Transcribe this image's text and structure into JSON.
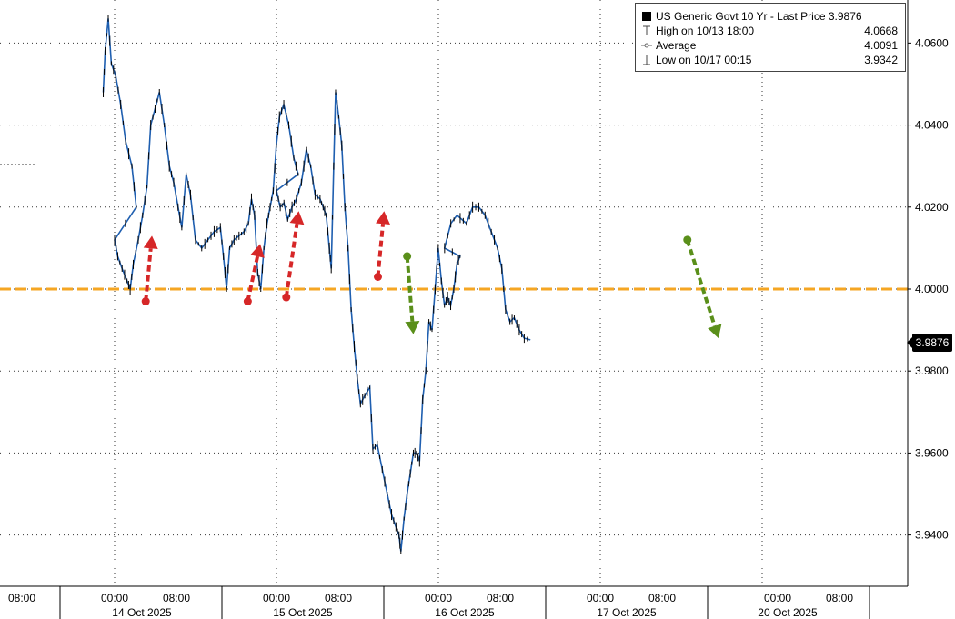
{
  "chart_data": {
    "type": "line",
    "series": [
      {
        "name": "US Generic Govt 10 Yr - Last Price",
        "values": [
          [
            -0.58,
            4.048
          ],
          [
            -0.55,
            4.058
          ],
          [
            -0.5,
            4.066
          ],
          [
            -0.45,
            4.055
          ],
          [
            -0.38,
            4.052
          ],
          [
            -0.3,
            4.045
          ],
          [
            -0.22,
            4.036
          ],
          [
            -0.12,
            4.03
          ],
          [
            -0.05,
            4.02
          ],
          [
            0.0,
            4.012
          ],
          [
            0.05,
            4.008
          ],
          [
            0.12,
            4.005
          ],
          [
            0.2,
            4.002
          ],
          [
            0.25,
            4.0
          ],
          [
            0.3,
            4.006
          ],
          [
            0.38,
            4.012
          ],
          [
            0.45,
            4.018
          ],
          [
            0.52,
            4.025
          ],
          [
            0.58,
            4.04
          ],
          [
            0.65,
            4.044
          ],
          [
            0.72,
            4.048
          ],
          [
            0.8,
            4.04
          ],
          [
            0.88,
            4.03
          ],
          [
            0.95,
            4.026
          ],
          [
            1.02,
            4.02
          ],
          [
            1.08,
            4.015
          ],
          [
            1.15,
            4.028
          ],
          [
            1.22,
            4.023
          ],
          [
            1.3,
            4.012
          ],
          [
            1.4,
            4.01
          ],
          [
            1.5,
            4.012
          ],
          [
            1.6,
            4.014
          ],
          [
            1.7,
            4.015
          ],
          [
            1.75,
            4.008
          ],
          [
            1.8,
            4.0
          ],
          [
            1.85,
            4.01
          ],
          [
            1.92,
            4.012
          ],
          [
            2.0,
            4.013
          ],
          [
            2.08,
            4.014
          ],
          [
            2.15,
            4.016
          ],
          [
            2.2,
            4.022
          ],
          [
            2.25,
            4.018
          ],
          [
            2.3,
            4.004
          ],
          [
            2.35,
            4.0
          ],
          [
            2.4,
            4.01
          ],
          [
            2.45,
            4.016
          ],
          [
            2.5,
            4.02
          ],
          [
            2.55,
            4.024
          ],
          [
            2.6,
            4.035
          ],
          [
            2.65,
            4.042
          ],
          [
            2.72,
            4.045
          ],
          [
            2.8,
            4.04
          ],
          [
            2.88,
            4.032
          ],
          [
            2.95,
            4.028
          ],
          [
            3.0,
            4.024
          ],
          [
            3.06,
            4.02
          ],
          [
            3.12,
            4.021
          ],
          [
            3.18,
            4.017
          ],
          [
            3.25,
            4.02
          ],
          [
            3.32,
            4.022
          ],
          [
            3.4,
            4.026
          ],
          [
            3.48,
            4.034
          ],
          [
            3.55,
            4.03
          ],
          [
            3.62,
            4.023
          ],
          [
            3.7,
            4.022
          ],
          [
            3.75,
            4.02
          ],
          [
            3.8,
            4.018
          ],
          [
            3.85,
            4.01
          ],
          [
            3.88,
            4.005
          ],
          [
            3.92,
            4.03
          ],
          [
            3.95,
            4.048
          ],
          [
            4.0,
            4.042
          ],
          [
            4.05,
            4.035
          ],
          [
            4.1,
            4.02
          ],
          [
            4.15,
            4.01
          ],
          [
            4.2,
            3.995
          ],
          [
            4.25,
            3.986
          ],
          [
            4.3,
            3.978
          ],
          [
            4.35,
            3.972
          ],
          [
            4.42,
            3.974
          ],
          [
            4.5,
            3.976
          ],
          [
            4.55,
            3.961
          ],
          [
            4.62,
            3.962
          ],
          [
            4.7,
            3.956
          ],
          [
            4.78,
            3.95
          ],
          [
            4.85,
            3.945
          ],
          [
            4.92,
            3.942
          ],
          [
            4.97,
            3.94
          ],
          [
            5.0,
            3.936
          ],
          [
            5.05,
            3.944
          ],
          [
            5.1,
            3.95
          ],
          [
            5.15,
            3.955
          ],
          [
            5.2,
            3.96
          ],
          [
            5.25,
            3.96
          ],
          [
            5.3,
            3.958
          ],
          [
            5.35,
            3.973
          ],
          [
            5.4,
            3.98
          ],
          [
            5.45,
            3.992
          ],
          [
            5.5,
            3.99
          ],
          [
            5.55,
            4.0
          ],
          [
            5.6,
            4.01
          ],
          [
            5.65,
            4.002
          ],
          [
            5.7,
            3.996
          ],
          [
            5.75,
            3.998
          ],
          [
            5.8,
            3.996
          ],
          [
            5.85,
            4.0
          ],
          [
            5.9,
            4.006
          ],
          [
            5.95,
            4.008
          ],
          [
            6.1,
            4.01
          ],
          [
            6.2,
            4.016
          ],
          [
            6.3,
            4.018
          ],
          [
            6.45,
            4.016
          ],
          [
            6.55,
            4.02
          ],
          [
            6.65,
            4.02
          ],
          [
            6.75,
            4.018
          ],
          [
            6.85,
            4.014
          ],
          [
            6.95,
            4.01
          ],
          [
            7.02,
            4.005
          ],
          [
            7.08,
            3.995
          ],
          [
            7.15,
            3.992
          ],
          [
            7.22,
            3.993
          ],
          [
            7.3,
            3.99
          ],
          [
            7.38,
            3.988
          ],
          [
            7.48,
            3.9876
          ]
        ]
      }
    ],
    "y_axis": {
      "ticks": [
        "3.9400",
        "3.9600",
        "3.9800",
        "4.0000",
        "4.0200",
        "4.0400",
        "4.0600"
      ],
      "range": [
        3.9275,
        4.0705
      ],
      "side": "right"
    },
    "x_axis": {
      "time_labels": [
        "08:00",
        "00:00",
        "08:00",
        "00:00",
        "08:00",
        "00:00",
        "08:00",
        "00:00",
        "08:00",
        "00:00",
        "08:00"
      ],
      "date_labels": [
        "14 Oct 2025",
        "15 Oct 2025",
        "16 Oct 2025",
        "17 Oct 2025",
        "20 Oct 2025"
      ]
    },
    "legend": {
      "title": "US Generic Govt 10 Yr - Last Price",
      "last_value": "3.9876",
      "high_label": "High on 10/13 18:00",
      "high_value": "4.0668",
      "average_label": "Average",
      "average_value": "4.0091",
      "low_label": "Low on 10/17 00:15",
      "low_value": "3.9342",
      "placement": "top-right"
    },
    "last_price_label": "3.9876",
    "reference_line": {
      "value": 4.0,
      "color": "#f5a623",
      "style": "dashed"
    },
    "annotations": [
      {
        "type": "arrow",
        "color": "#d62728",
        "direction": "up",
        "from": [
          0.5,
          3.997
        ],
        "to": [
          0.6,
          4.013
        ]
      },
      {
        "type": "arrow",
        "color": "#d62728",
        "direction": "up",
        "from": [
          2.14,
          3.997
        ],
        "to": [
          2.34,
          4.011
        ]
      },
      {
        "type": "arrow",
        "color": "#d62728",
        "direction": "up",
        "from": [
          2.76,
          3.998
        ],
        "to": [
          2.96,
          4.019
        ]
      },
      {
        "type": "arrow",
        "color": "#d62728",
        "direction": "up",
        "from": [
          4.63,
          4.003
        ],
        "to": [
          4.73,
          4.019
        ]
      },
      {
        "type": "arrow",
        "color": "#5a8f1a",
        "direction": "down",
        "from": [
          5.1,
          4.008
        ],
        "to": [
          5.2,
          3.989
        ]
      },
      {
        "type": "arrow",
        "color": "#5a8f1a",
        "direction": "down",
        "from": [
          10.4,
          4.012
        ],
        "to": [
          10.9,
          3.988
        ]
      }
    ],
    "grid": true,
    "colors": {
      "line": "#1f5fb0",
      "price_bars": "#000000"
    }
  }
}
